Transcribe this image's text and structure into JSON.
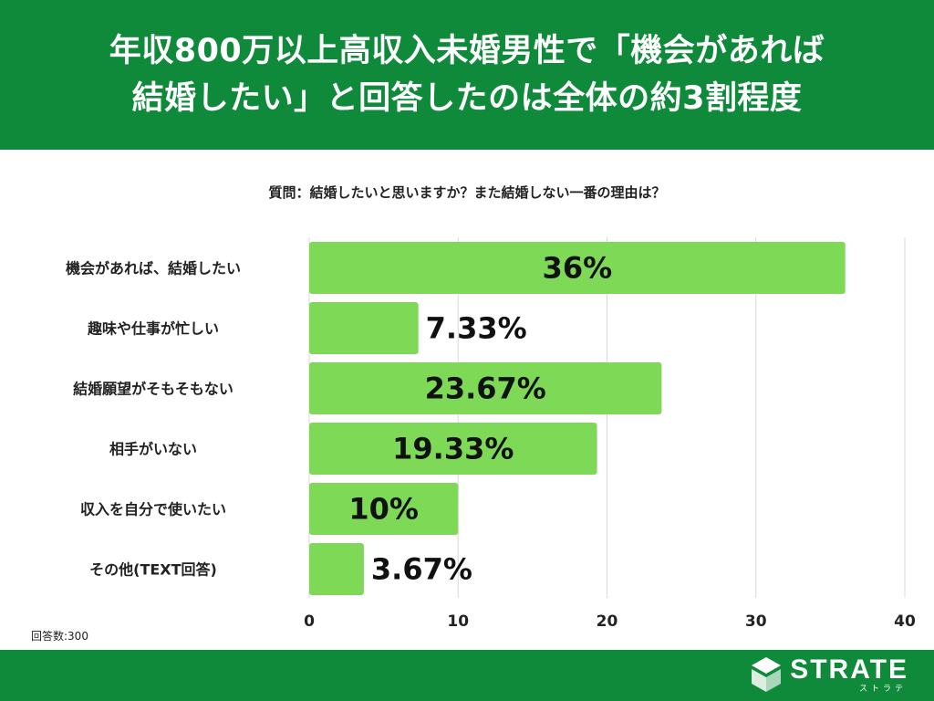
{
  "header": {
    "title_line1": "年収800万以上高収入未婚男性で「機会があれば",
    "title_line2": "結婚したい」と回答したのは全体の約3割程度"
  },
  "question": "質問：結婚したいと思いますか？また結婚しない一番の理由は？",
  "footer": {
    "responses": "回答数:300",
    "brand_name": "STRATE",
    "brand_sub": "ストラテ",
    "brand_icon": "strate-logo-icon"
  },
  "colors": {
    "header_bg": "#0e8a3a",
    "bar": "#7ed957",
    "grid": "#d9d9d9"
  },
  "chart_data": {
    "type": "bar",
    "orientation": "horizontal",
    "categories": [
      "機会があれば、結婚したい",
      "趣味や仕事が忙しい",
      "結婚願望がそもそもない",
      "相手がいない",
      "収入を自分で使いたい",
      "その他(TEXT回答)"
    ],
    "values": [
      36,
      7.33,
      23.67,
      19.33,
      10,
      3.67
    ],
    "data_labels": [
      "36%",
      "7.33%",
      "23.67%",
      "19.33%",
      "10%",
      "3.67%"
    ],
    "xlim": [
      0,
      40
    ],
    "xticks": [
      0,
      10,
      20,
      30,
      40
    ],
    "grid": true
  }
}
